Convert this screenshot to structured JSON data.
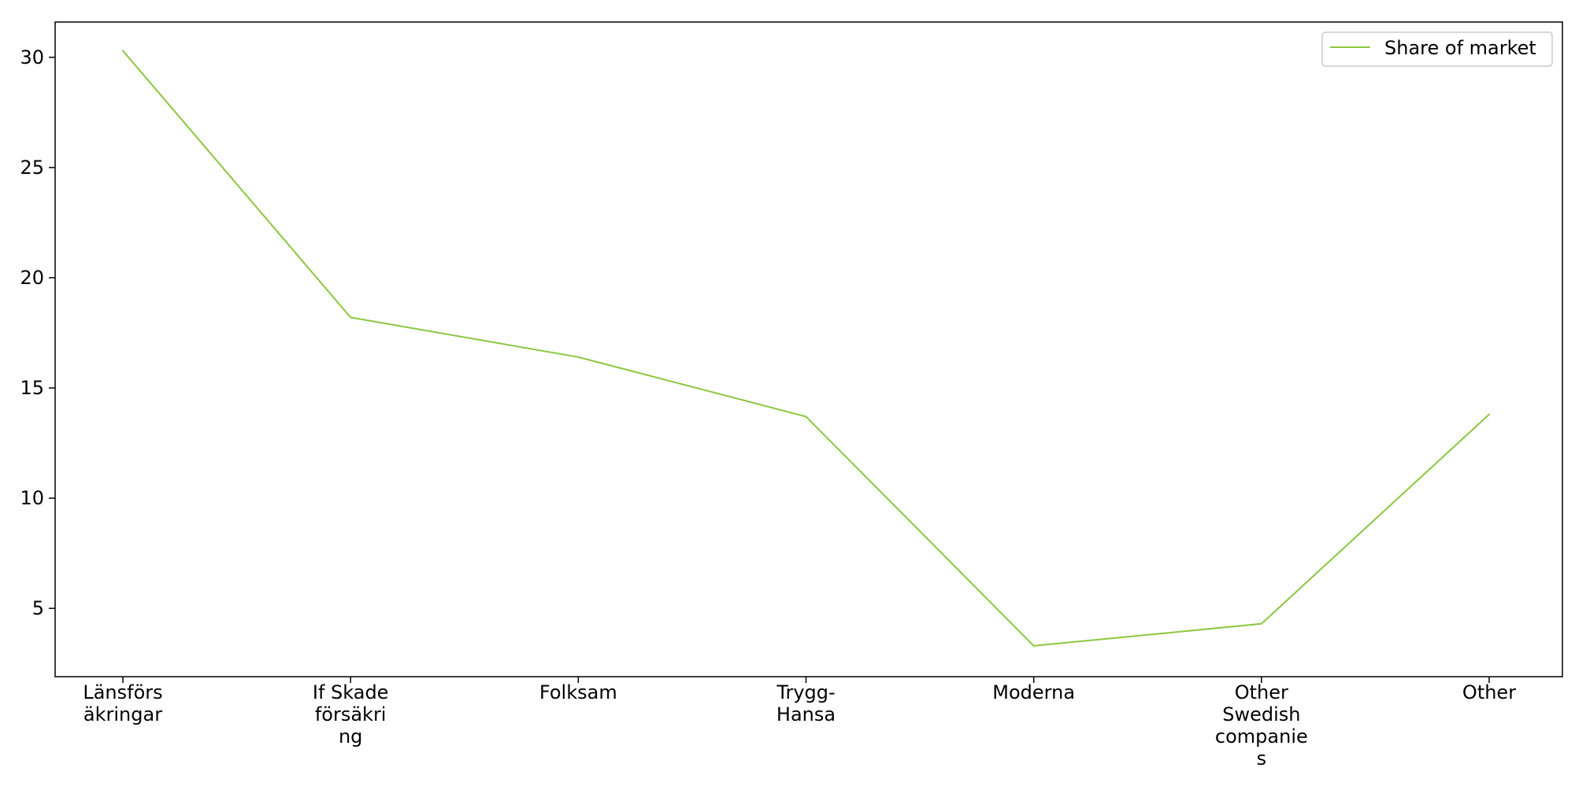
{
  "chart_data": {
    "type": "line",
    "categories": [
      [
        "Länsförs",
        "äkringar"
      ],
      [
        "If Skade",
        "försäkri",
        "ng"
      ],
      [
        "Folksam"
      ],
      [
        "Trygg-",
        "Hansa"
      ],
      [
        "Moderna"
      ],
      [
        "Other",
        "Swedish",
        "companie",
        "s"
      ],
      [
        "Other"
      ]
    ],
    "series": [
      {
        "name": "Share of market",
        "values": [
          30.3,
          18.2,
          16.4,
          13.7,
          3.3,
          4.3,
          13.8
        ],
        "color": "#8cc63f"
      }
    ],
    "yticks": [
      5,
      10,
      15,
      20,
      25,
      30
    ],
    "ylim": [
      1.9,
      31.6
    ],
    "grid": false,
    "legend_position": "top-right",
    "title": "",
    "xlabel": "",
    "ylabel": ""
  }
}
